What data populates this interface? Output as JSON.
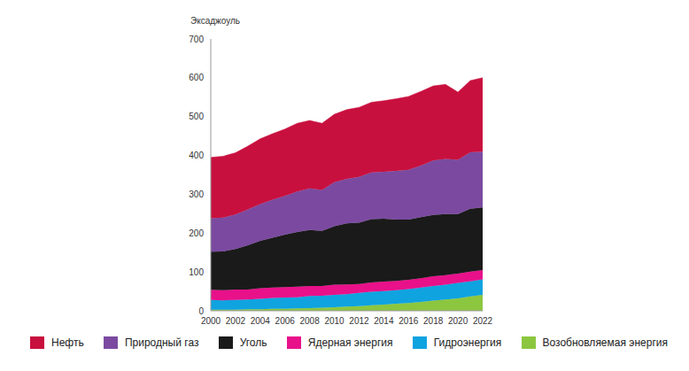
{
  "chart_data": {
    "type": "area",
    "y_label": "Эксаджоуль",
    "x": [
      2000,
      2001,
      2002,
      2003,
      2004,
      2005,
      2006,
      2007,
      2008,
      2009,
      2010,
      2011,
      2012,
      2013,
      2014,
      2015,
      2016,
      2017,
      2018,
      2019,
      2020,
      2021,
      2022
    ],
    "xlim": [
      2000,
      2022
    ],
    "xticks": [
      2000,
      2002,
      2004,
      2006,
      2008,
      2010,
      2012,
      2014,
      2016,
      2018,
      2020,
      2022
    ],
    "ylim": [
      0,
      700
    ],
    "yticks": [
      0,
      100,
      200,
      300,
      400,
      500,
      600,
      700
    ],
    "grid": false,
    "stacked": true,
    "legend": "bottom",
    "series": [
      {
        "name": "Нефть",
        "color": "#c8103e",
        "values": [
          157,
          158,
          159,
          163,
          168,
          170,
          172,
          176,
          175,
          172,
          175,
          178,
          179,
          181,
          183,
          186,
          189,
          191,
          192,
          192,
          174,
          185,
          190
        ]
      },
      {
        "name": "Природный газ",
        "color": "#7b4aa0",
        "values": [
          86,
          87,
          89,
          92,
          95,
          98,
          100,
          104,
          107,
          105,
          113,
          115,
          118,
          120,
          121,
          125,
          128,
          133,
          140,
          142,
          140,
          145,
          144
        ]
      },
      {
        "name": "Уголь",
        "color": "#1a1a1a",
        "values": [
          98,
          100,
          104,
          114,
          122,
          128,
          135,
          141,
          144,
          142,
          151,
          157,
          158,
          163,
          162,
          158,
          155,
          157,
          158,
          157,
          153,
          162,
          161
        ]
      },
      {
        "name": "Ядерная энергия",
        "color": "#e8118a",
        "values": [
          26,
          26,
          27,
          26,
          27,
          27,
          27,
          27,
          26,
          25,
          26,
          25,
          23,
          24,
          24,
          24,
          24,
          24,
          25,
          25,
          24,
          25,
          24
        ]
      },
      {
        "name": "Гидроэнергия",
        "color": "#0fa3e0",
        "values": [
          25,
          24,
          25,
          25,
          27,
          28,
          29,
          29,
          31,
          31,
          32,
          32,
          34,
          35,
          35,
          35,
          36,
          37,
          38,
          38,
          40,
          39,
          40
        ]
      },
      {
        "name": "Возобновляемая энергия",
        "color": "#8cc63f",
        "values": [
          3,
          3,
          3,
          4,
          4,
          5,
          5,
          6,
          7,
          8,
          9,
          11,
          12,
          14,
          16,
          18,
          20,
          23,
          26,
          29,
          32,
          37,
          41
        ]
      }
    ]
  }
}
